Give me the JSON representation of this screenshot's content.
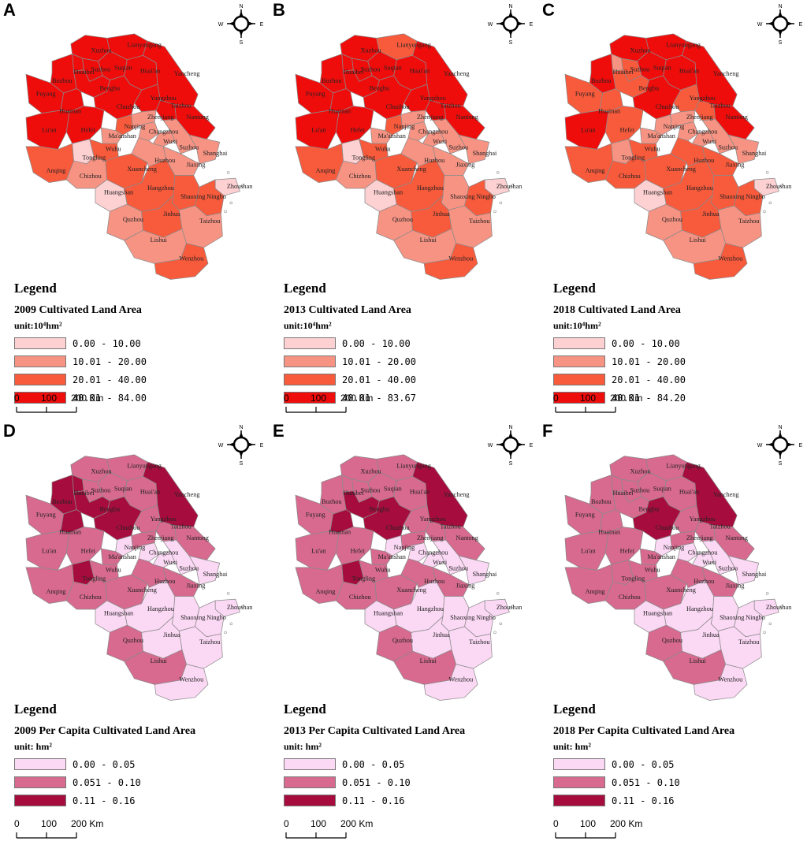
{
  "panels": [
    {
      "label": "A",
      "title": "Legend",
      "subtitle": "2009 Cultivated Land Area",
      "unit": "unit:10⁴hm²",
      "classes": [
        {
          "range": "0.00 - 10.00",
          "color": "#fdd0d2"
        },
        {
          "range": "10.01 - 20.00",
          "color": "#f79383"
        },
        {
          "range": "20.01 - 40.00",
          "color": "#f85a3c"
        },
        {
          "range": "40.01 - 84.00",
          "color": "#ef0d0c"
        }
      ],
      "region_class": {
        "Xuzhou": 3,
        "Lianyungang": 3,
        "Suzhou": 3,
        "Huaibei": 3,
        "Suqian": 3,
        "Huai'an": 3,
        "Yancheng": 3,
        "Bozhou": 3,
        "Bengbu": 3,
        "Fuyang": 3,
        "Yangzhou": 3,
        "Taizhou_js": 3,
        "Huainan": 3,
        "Chuzhou": 3,
        "Nantong": 3,
        "Lu'an": 3,
        "Hefei": 3,
        "Nanjing": 2,
        "Zhenjiang": 1,
        "Ma'anshan": 1,
        "Changzhou": 1,
        "Wuxi": 1,
        "Suzhou_js": 1,
        "Wuhu": 2,
        "Shanghai": 1,
        "Tongling": 0,
        "Anqing": 2,
        "Xuancheng": 2,
        "Huzhou": 1,
        "Jiaxing": 1,
        "Chizhou": 1,
        "Huangshan": 0,
        "Hangzhou": 2,
        "Zhoushan": 0,
        "Shaoxing": 2,
        "Ningbo": 2,
        "Quzhou": 1,
        "Jinhua": 2,
        "Taizhou_zj": 1,
        "Lishui": 1,
        "Wenzhou": 2
      },
      "scale": {
        "labels": [
          "0",
          "100",
          "200 Km"
        ]
      }
    },
    {
      "label": "B",
      "title": "Legend",
      "subtitle": "2013 Cultivated Land Area",
      "unit": "unit:10⁴hm²",
      "classes": [
        {
          "range": "0.00 - 10.00",
          "color": "#fdd0d2"
        },
        {
          "range": "10.01 - 20.00",
          "color": "#f79383"
        },
        {
          "range": "20.01 - 40.00",
          "color": "#f85a3c"
        },
        {
          "range": "40.01 - 83.67",
          "color": "#ef0d0c"
        }
      ],
      "region_class": {
        "Xuzhou": 3,
        "Lianyungang": 2,
        "Suzhou": 3,
        "Huaibei": 3,
        "Suqian": 3,
        "Huai'an": 3,
        "Yancheng": 3,
        "Bozhou": 3,
        "Bengbu": 3,
        "Fuyang": 3,
        "Yangzhou": 3,
        "Taizhou_js": 3,
        "Huainan": 3,
        "Chuzhou": 3,
        "Nantong": 3,
        "Lu'an": 3,
        "Hefei": 3,
        "Nanjing": 2,
        "Zhenjiang": 1,
        "Ma'anshan": 1,
        "Changzhou": 1,
        "Wuxi": 1,
        "Suzhou_js": 1,
        "Wuhu": 2,
        "Shanghai": 1,
        "Tongling": 0,
        "Anqing": 2,
        "Xuancheng": 2,
        "Huzhou": 1,
        "Jiaxing": 1,
        "Chizhou": 1,
        "Huangshan": 0,
        "Hangzhou": 2,
        "Zhoushan": 0,
        "Shaoxing": 1,
        "Ningbo": 2,
        "Quzhou": 1,
        "Jinhua": 2,
        "Taizhou_zj": 1,
        "Lishui": 1,
        "Wenzhou": 2
      },
      "scale": {
        "labels": [
          "0",
          "100",
          "200 Km"
        ]
      }
    },
    {
      "label": "C",
      "title": "Legend",
      "subtitle": "2018 Cultivated Land Area",
      "unit": "unit:10⁴hm²",
      "classes": [
        {
          "range": "0.00 - 10.00",
          "color": "#fdd0d2"
        },
        {
          "range": "10.01 - 20.00",
          "color": "#f79383"
        },
        {
          "range": "20.01 - 40.00",
          "color": "#f85a3c"
        },
        {
          "range": "40.01 - 84.20",
          "color": "#ef0d0c"
        }
      ],
      "region_class": {
        "Xuzhou": 3,
        "Lianyungang": 3,
        "Suzhou": 2,
        "Huaibei": 1,
        "Suqian": 3,
        "Huai'an": 3,
        "Yancheng": 3,
        "Bozhou": 3,
        "Bengbu": 2,
        "Fuyang": 2,
        "Yangzhou": 2,
        "Taizhou_js": 2,
        "Huainan": 2,
        "Chuzhou": 3,
        "Nantong": 3,
        "Lu'an": 3,
        "Hefei": 2,
        "Nanjing": 1,
        "Zhenjiang": 1,
        "Ma'anshan": 1,
        "Changzhou": 1,
        "Wuxi": 1,
        "Suzhou_js": 1,
        "Wuhu": 2,
        "Shanghai": 1,
        "Tongling": 1,
        "Anqing": 2,
        "Xuancheng": 2,
        "Huzhou": 2,
        "Jiaxing": 2,
        "Chizhou": 2,
        "Huangshan": 0,
        "Hangzhou": 2,
        "Zhoushan": 0,
        "Shaoxing": 2,
        "Ningbo": 2,
        "Quzhou": 1,
        "Jinhua": 2,
        "Taizhou_zj": 1,
        "Lishui": 1,
        "Wenzhou": 2
      },
      "scale": {
        "labels": [
          "0",
          "100",
          "200 Km"
        ]
      }
    },
    {
      "label": "D",
      "title": "Legend",
      "subtitle": "2009 Per Capita Cultivated Land Area",
      "unit": "unit: hm²",
      "classes": [
        {
          "range": "0.00 - 0.05",
          "color": "#fbd8f4"
        },
        {
          "range": "0.051 - 0.10",
          "color": "#d76a8e"
        },
        {
          "range": "0.11 - 0.16",
          "color": "#a60d3e"
        }
      ],
      "region_class": {
        "Xuzhou": 1,
        "Lianyungang": 1,
        "Suzhou": 1,
        "Huaibei": 2,
        "Suqian": 1,
        "Huai'an": 1,
        "Yancheng": 2,
        "Bozhou": 2,
        "Bengbu": 2,
        "Fuyang": 1,
        "Yangzhou": 1,
        "Taizhou_js": 1,
        "Huainan": 2,
        "Chuzhou": 2,
        "Nantong": 1,
        "Lu'an": 1,
        "Hefei": 1,
        "Nanjing": 0,
        "Zhenjiang": 1,
        "Ma'anshan": 1,
        "Changzhou": 0,
        "Wuxi": 0,
        "Suzhou_js": 0,
        "Wuhu": 1,
        "Shanghai": 0,
        "Tongling": 2,
        "Anqing": 1,
        "Xuancheng": 1,
        "Huzhou": 1,
        "Jiaxing": 1,
        "Chizhou": 1,
        "Huangshan": 0,
        "Hangzhou": 0,
        "Zhoushan": 0,
        "Shaoxing": 0,
        "Ningbo": 0,
        "Quzhou": 1,
        "Jinhua": 0,
        "Taizhou_zj": 0,
        "Lishui": 1,
        "Wenzhou": 0
      },
      "scale": {
        "labels": [
          "0",
          "100",
          "200 Km"
        ]
      }
    },
    {
      "label": "E",
      "title": "Legend",
      "subtitle": "2013 Per Capita Cultivated Land Area",
      "unit": "unit: hm²",
      "classes": [
        {
          "range": "0.00 - 0.05",
          "color": "#fbd8f4"
        },
        {
          "range": "0.051 - 0.10",
          "color": "#d76a8e"
        },
        {
          "range": "0.11 - 0.16",
          "color": "#a60d3e"
        }
      ],
      "region_class": {
        "Xuzhou": 1,
        "Lianyungang": 1,
        "Suzhou": 1,
        "Huaibei": 1,
        "Suqian": 1,
        "Huai'an": 1,
        "Yancheng": 2,
        "Bozhou": 1,
        "Bengbu": 2,
        "Fuyang": 1,
        "Yangzhou": 1,
        "Taizhou_js": 1,
        "Huainan": 2,
        "Chuzhou": 2,
        "Nantong": 1,
        "Lu'an": 1,
        "Hefei": 1,
        "Nanjing": 0,
        "Zhenjiang": 1,
        "Ma'anshan": 1,
        "Changzhou": 0,
        "Wuxi": 0,
        "Suzhou_js": 0,
        "Wuhu": 1,
        "Shanghai": 0,
        "Tongling": 2,
        "Anqing": 1,
        "Xuancheng": 1,
        "Huzhou": 1,
        "Jiaxing": 1,
        "Chizhou": 1,
        "Huangshan": 0,
        "Hangzhou": 0,
        "Zhoushan": 0,
        "Shaoxing": 0,
        "Ningbo": 0,
        "Quzhou": 1,
        "Jinhua": 0,
        "Taizhou_zj": 0,
        "Lishui": 1,
        "Wenzhou": 0
      },
      "scale": {
        "labels": [
          "0",
          "100",
          "200 Km"
        ]
      }
    },
    {
      "label": "F",
      "title": "Legend",
      "subtitle": "2018 Per Capita Cultivated Land Area",
      "unit": "unit: hm²",
      "classes": [
        {
          "range": "0.00 - 0.05",
          "color": "#fbd8f4"
        },
        {
          "range": "0.051 - 0.10",
          "color": "#d76a8e"
        },
        {
          "range": "0.11 - 0.16",
          "color": "#a60d3e"
        }
      ],
      "region_class": {
        "Xuzhou": 1,
        "Lianyungang": 1,
        "Suzhou": 1,
        "Huaibei": 1,
        "Suqian": 1,
        "Huai'an": 1,
        "Yancheng": 2,
        "Bozhou": 1,
        "Bengbu": 1,
        "Fuyang": 1,
        "Yangzhou": 1,
        "Taizhou_js": 1,
        "Huainan": 1,
        "Chuzhou": 2,
        "Nantong": 1,
        "Lu'an": 1,
        "Hefei": 1,
        "Nanjing": 0,
        "Zhenjiang": 1,
        "Ma'anshan": 1,
        "Changzhou": 0,
        "Wuxi": 0,
        "Suzhou_js": 0,
        "Wuhu": 1,
        "Shanghai": 0,
        "Tongling": 1,
        "Anqing": 1,
        "Xuancheng": 1,
        "Huzhou": 1,
        "Jiaxing": 1,
        "Chizhou": 1,
        "Huangshan": 0,
        "Hangzhou": 0,
        "Zhoushan": 0,
        "Shaoxing": 0,
        "Ningbo": 0,
        "Quzhou": 1,
        "Jinhua": 0,
        "Taizhou_zj": 0,
        "Lishui": 1,
        "Wenzhou": 0
      },
      "scale": {
        "labels": [
          "0",
          "100",
          "200 Km"
        ]
      }
    }
  ],
  "region_names": {
    "Xuzhou": "Xuzhou",
    "Lianyungang": "Lianyungang",
    "Suzhou": "Suzhou",
    "Huaibei": "Huaibei",
    "Suqian": "Suqian",
    "Huai'an": "Huai'an",
    "Yancheng": "Yancheng",
    "Bozhou": "Bozhou",
    "Bengbu": "Bengbu",
    "Fuyang": "Fuyang",
    "Yangzhou": "Yangzhou",
    "Taizhou_js": "Taizhou",
    "Huainan": "Huainan",
    "Chuzhou": "Chuzhou",
    "Nantong": "Nantong",
    "Lu'an": "Lu'an",
    "Hefei": "Hefei",
    "Nanjing": "Nanjing",
    "Zhenjiang": "Zhenjiang",
    "Ma'anshan": "Ma'anshan",
    "Changzhou": "Changzhou",
    "Wuxi": "Wuxi",
    "Suzhou_js": "Suzhou",
    "Wuhu": "Wuhu",
    "Shanghai": "Shanghai",
    "Tongling": "Tongling",
    "Anqing": "Anqing",
    "Xuancheng": "Xuancheng",
    "Huzhou": "Huzhou",
    "Jiaxing": "Jiaxing",
    "Chizhou": "Chizhou",
    "Huangshan": "Huangshan",
    "Hangzhou": "Hangzhou",
    "Zhoushan": "Zhoushan",
    "Shaoxing": "Shaoxing",
    "Ningbo": "Ningbo",
    "Quzhou": "Quzhou",
    "Jinhua": "Jinhua",
    "Taizhou_zj": "Taizhou",
    "Lishui": "Lishui",
    "Wenzhou": "Wenzhou"
  },
  "compass": {
    "n": "N",
    "s": "S",
    "e": "E",
    "w": "W"
  },
  "border_color": "#8a8a8a"
}
